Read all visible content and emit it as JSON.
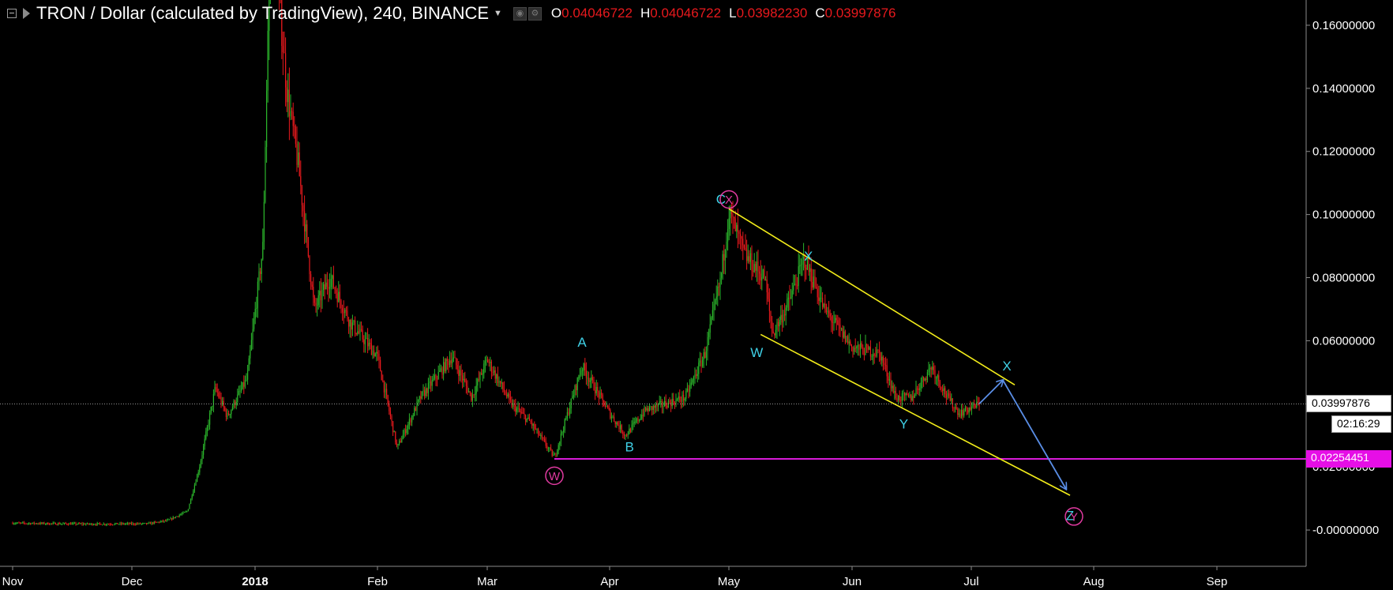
{
  "header": {
    "symbol_title": "TRON / Dollar (calculated by TradingView), 240, BINANCE",
    "ohlc": [
      {
        "key": "O",
        "value": "0.04046722"
      },
      {
        "key": "H",
        "value": "0.04046722"
      },
      {
        "key": "L",
        "value": "0.03982230"
      },
      {
        "key": "C",
        "value": "0.03997876"
      }
    ]
  },
  "colors": {
    "background": "#000000",
    "up_candle": "#2bb52b",
    "down_candle": "#e8191d",
    "trendline": "#f2ec1a",
    "support_line": "#d81bd8",
    "projection_arrow": "#5a8ee6",
    "wave_label": "#3fd0e6",
    "circled_label": "#e03aa0"
  },
  "price_tags": {
    "last_price": "0.03997876",
    "countdown": "02:16:29",
    "support_price": "0.02254451"
  },
  "chart_data": {
    "type": "candlestick",
    "title": "TRON / Dollar (calculated by TradingView), 240, BINANCE",
    "x_tick_labels": [
      "Nov",
      "Dec",
      "2018",
      "Feb",
      "Mar",
      "Apr",
      "May",
      "Jun",
      "Jul",
      "Aug",
      "Sep"
    ],
    "y_tick_labels": [
      "0.16000000",
      "0.14000000",
      "0.12000000",
      "0.10000000",
      "0.08000000",
      "0.06000000",
      "0.02000000",
      "-0.00000000"
    ],
    "y_ticks": [
      0.16,
      0.14,
      0.12,
      0.1,
      0.08,
      0.06,
      0.02,
      0.0
    ],
    "ylim": [
      -0.0115,
      0.168
    ],
    "grid": false,
    "price_path": [
      [
        "2017-11-01",
        0.0022
      ],
      [
        "2017-11-20",
        0.0019
      ],
      [
        "2017-12-05",
        0.002
      ],
      [
        "2017-12-10",
        0.003
      ],
      [
        "2017-12-15",
        0.006
      ],
      [
        "2017-12-18",
        0.02
      ],
      [
        "2017-12-22",
        0.045
      ],
      [
        "2017-12-25",
        0.036
      ],
      [
        "2017-12-30",
        0.048
      ],
      [
        "2018-01-03",
        0.09
      ],
      [
        "2018-01-05",
        0.2
      ],
      [
        "2018-01-09",
        0.14
      ],
      [
        "2018-01-12",
        0.115
      ],
      [
        "2018-01-16",
        0.07
      ],
      [
        "2018-01-20",
        0.08
      ],
      [
        "2018-01-25",
        0.066
      ],
      [
        "2018-02-01",
        0.055
      ],
      [
        "2018-02-06",
        0.026
      ],
      [
        "2018-02-12",
        0.042
      ],
      [
        "2018-02-20",
        0.055
      ],
      [
        "2018-02-25",
        0.042
      ],
      [
        "2018-03-01",
        0.054
      ],
      [
        "2018-03-07",
        0.04
      ],
      [
        "2018-03-12",
        0.034
      ],
      [
        "2018-03-18",
        0.023
      ],
      [
        "2018-03-25",
        0.052
      ],
      [
        "2018-04-01",
        0.037
      ],
      [
        "2018-04-05",
        0.03
      ],
      [
        "2018-04-10",
        0.038
      ],
      [
        "2018-04-20",
        0.042
      ],
      [
        "2018-04-25",
        0.056
      ],
      [
        "2018-04-29",
        0.08
      ],
      [
        "2018-05-01",
        0.101
      ],
      [
        "2018-05-05",
        0.087
      ],
      [
        "2018-05-10",
        0.08
      ],
      [
        "2018-05-12",
        0.062
      ],
      [
        "2018-05-16",
        0.072
      ],
      [
        "2018-05-20",
        0.086
      ],
      [
        "2018-05-25",
        0.07
      ],
      [
        "2018-06-01",
        0.058
      ],
      [
        "2018-06-08",
        0.056
      ],
      [
        "2018-06-12",
        0.042
      ],
      [
        "2018-06-16",
        0.042
      ],
      [
        "2018-06-21",
        0.052
      ],
      [
        "2018-06-25",
        0.042
      ],
      [
        "2018-06-28",
        0.037
      ],
      [
        "2018-07-03",
        0.04
      ]
    ],
    "horizontal_line": {
      "value": 0.02254451,
      "from": "2018-03-18"
    },
    "trendlines": [
      {
        "from": [
          "2018-05-01",
          0.1018
        ],
        "to": [
          "2018-07-12",
          0.046
        ]
      },
      {
        "from": [
          "2018-05-09",
          0.062
        ],
        "to": [
          "2018-07-26",
          0.011
        ]
      }
    ],
    "arrows": [
      {
        "from": [
          "2018-07-03",
          0.04
        ],
        "to": [
          "2018-07-09",
          0.0475
        ]
      },
      {
        "from": [
          "2018-07-09",
          0.0475
        ],
        "to": [
          "2018-07-25",
          0.013
        ]
      }
    ],
    "wave_labels": [
      {
        "text": "A",
        "date": "2018-03-25",
        "value": 0.0595
      },
      {
        "text": "B",
        "date": "2018-04-06",
        "value": 0.0263
      },
      {
        "text": "C",
        "date": "2018-04-29",
        "value": 0.1048
      },
      {
        "text": "X",
        "date": "2018-05-21",
        "value": 0.0868
      },
      {
        "text": "W",
        "date": "2018-05-08",
        "value": 0.0562
      },
      {
        "text": "Y",
        "date": "2018-06-14",
        "value": 0.0336
      },
      {
        "text": "X",
        "date": "2018-07-10",
        "value": 0.052
      },
      {
        "text": "Z",
        "date": "2018-07-26",
        "value": 0.0045
      }
    ],
    "circled_labels": [
      {
        "text": "W",
        "date": "2018-03-18",
        "value": 0.0172
      },
      {
        "text": "X",
        "date": "2018-05-01",
        "value": 0.1048
      },
      {
        "text": "Y",
        "date": "2018-07-27",
        "value": 0.0043
      }
    ]
  }
}
